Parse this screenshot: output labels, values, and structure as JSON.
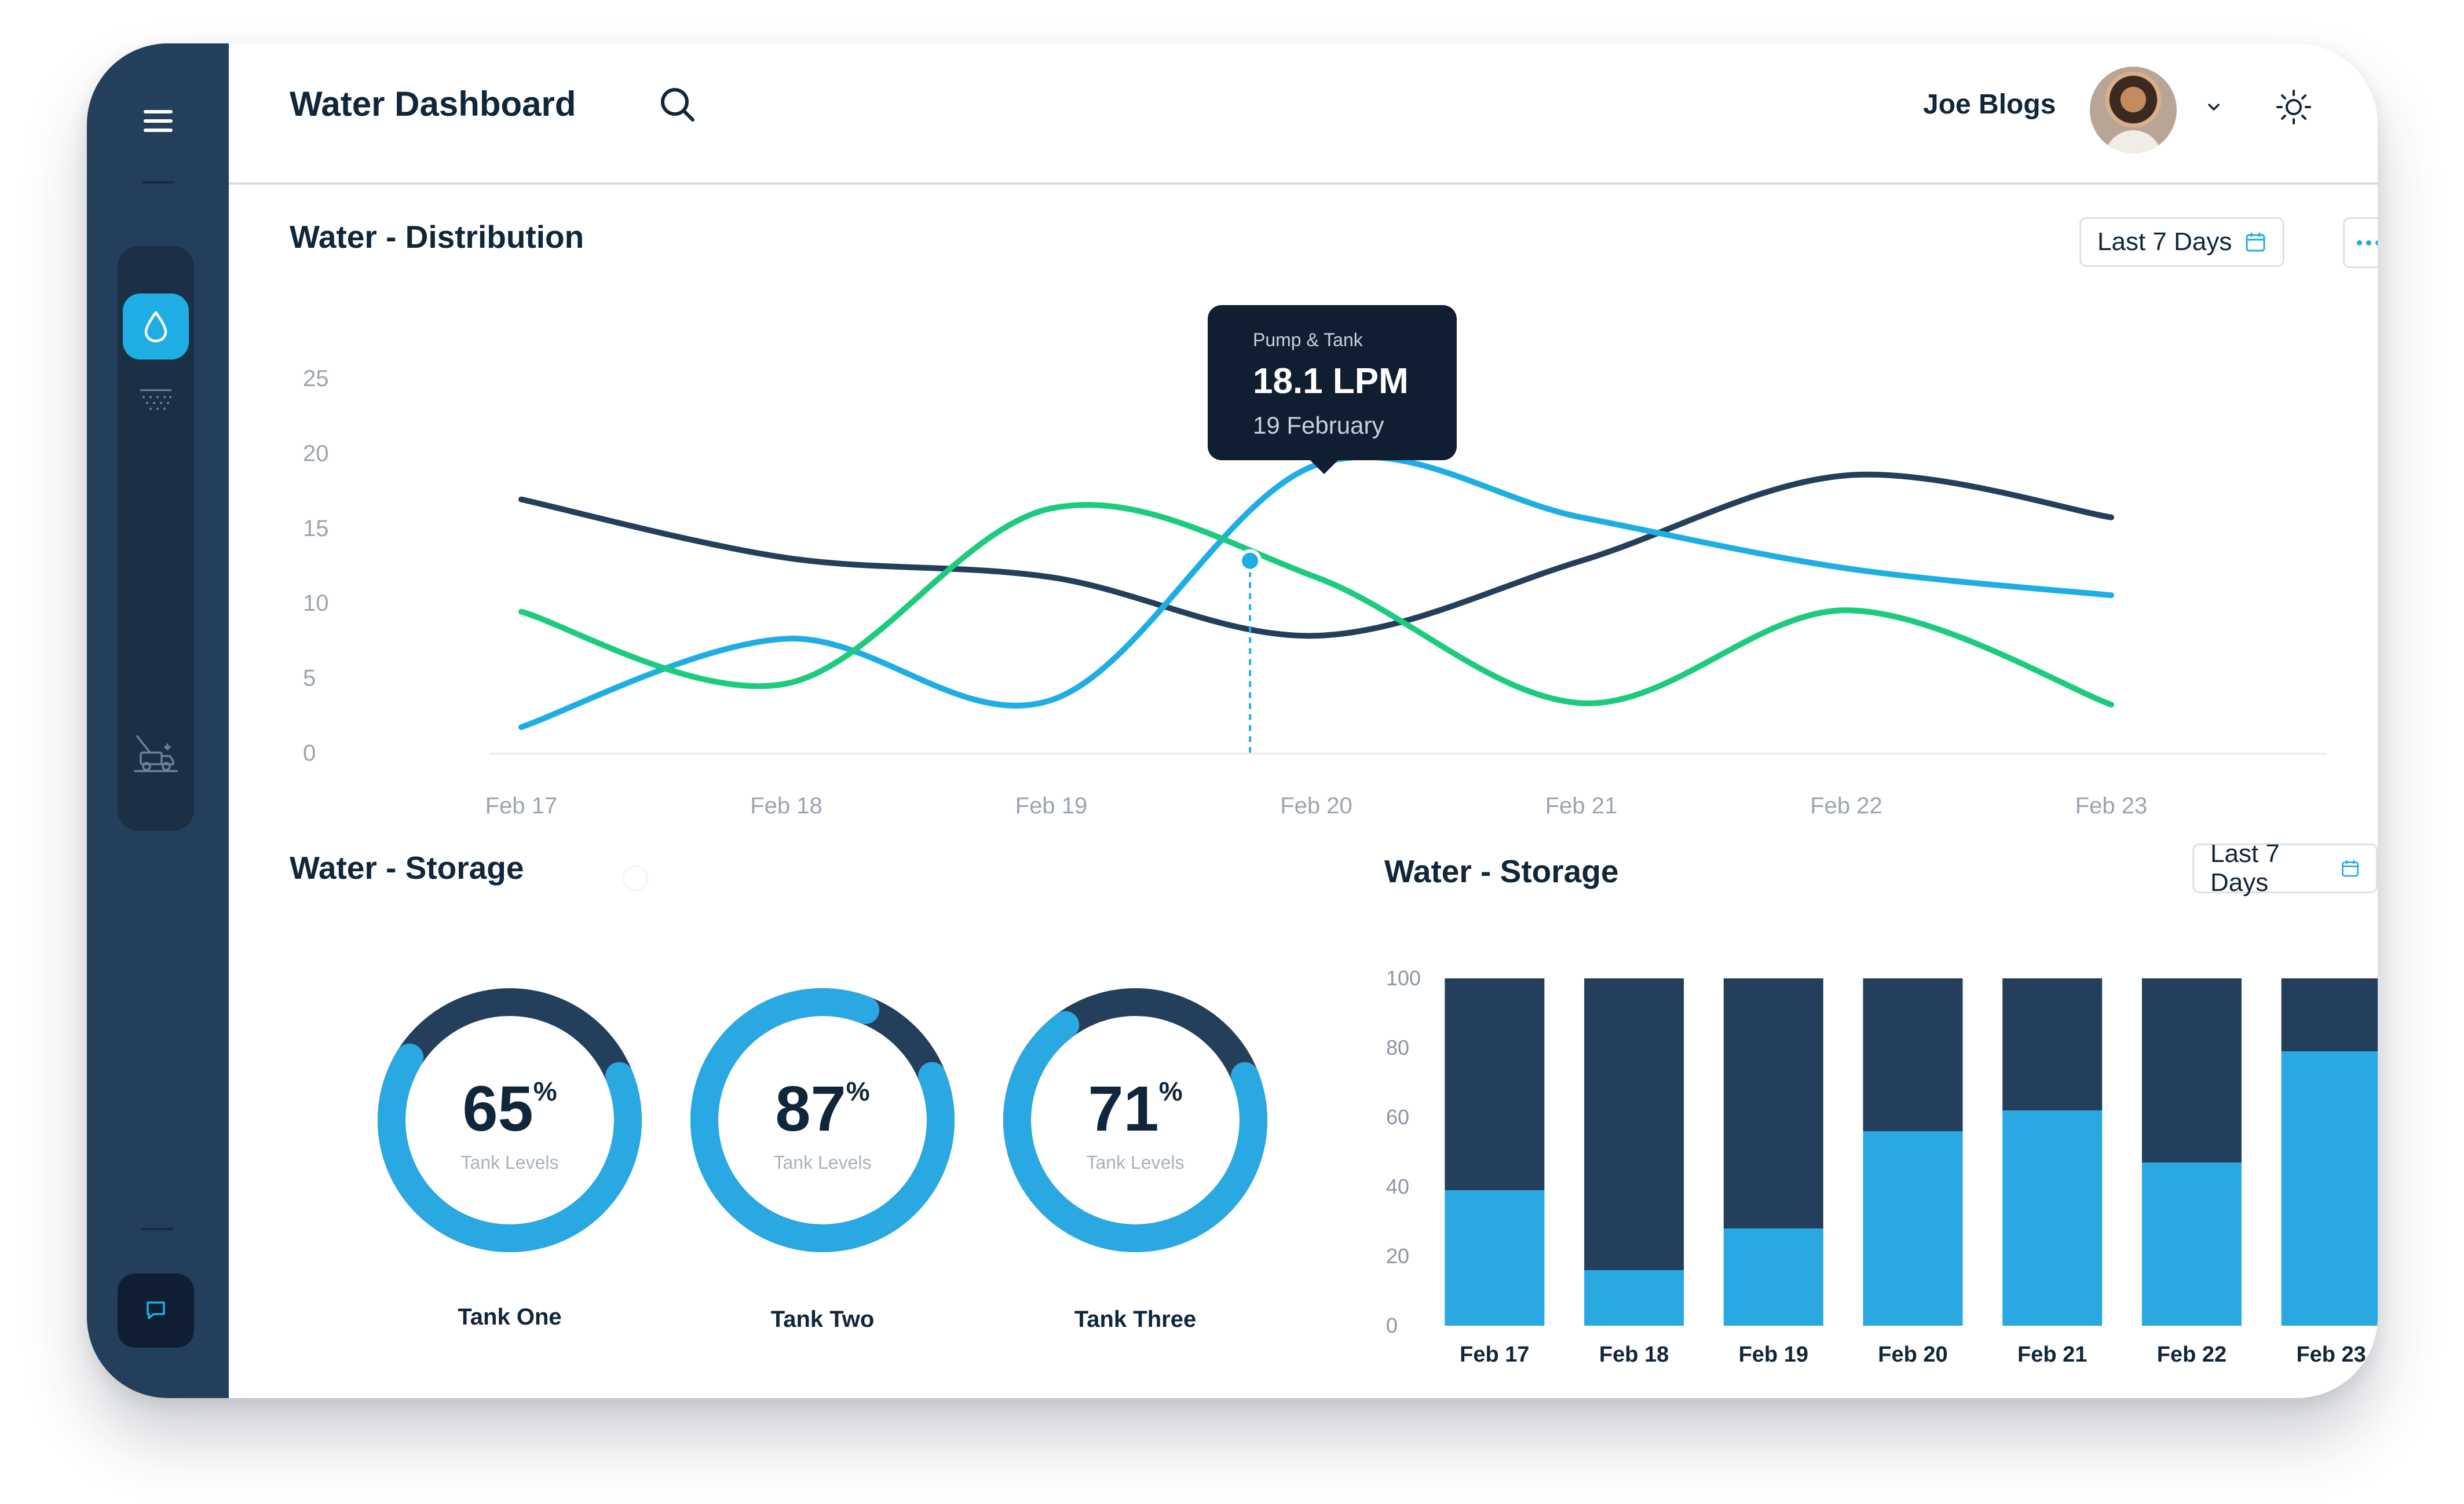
{
  "header": {
    "title": "Water Dashboard",
    "user_name": "Joe Blogs"
  },
  "distribution": {
    "title": "Water - Distribution",
    "range_label": "Last 7 Days",
    "tooltip": {
      "series": "Pump & Tank",
      "value": "18.1 LPM",
      "date": "19 February"
    }
  },
  "storage_gauges": {
    "title": "Water - Storage",
    "caption": "Tank Levels",
    "percent_sign": "%",
    "tanks": [
      {
        "name": "Tank One",
        "value": 65
      },
      {
        "name": "Tank Two",
        "value": 87
      },
      {
        "name": "Tank Three",
        "value": 71
      }
    ]
  },
  "storage_bars": {
    "title": "Water - Storage",
    "range_label": "Last 7 Days"
  },
  "chart_data": [
    {
      "type": "line",
      "title": "Water - Distribution",
      "x": [
        "Feb 17",
        "Feb 18",
        "Feb 19",
        "Feb 20",
        "Feb 21",
        "Feb 22",
        "Feb 23"
      ],
      "ylim": [
        0,
        25
      ],
      "yticks": [
        0,
        5,
        10,
        15,
        20,
        25
      ],
      "grid": false,
      "series": [
        {
          "color": "#233f5b",
          "values": [
            16.9,
            13.0,
            11.7,
            7.8,
            12.8,
            18.5,
            15.7
          ]
        },
        {
          "color": "#1faee3",
          "values": [
            1.7,
            7.6,
            3.5,
            19.2,
            15.7,
            12.3,
            10.5
          ]
        },
        {
          "color": "#1ccb7d",
          "values": [
            9.4,
            4.6,
            16.3,
            11.7,
            3.3,
            9.5,
            3.2
          ]
        }
      ]
    },
    {
      "type": "bar",
      "title": "Water - Storage",
      "categories": [
        "Feb 17",
        "Feb 18",
        "Feb 19",
        "Feb 20",
        "Feb 21",
        "Feb 22",
        "Feb 23"
      ],
      "ylim": [
        0,
        100
      ],
      "yticks": [
        0,
        20,
        40,
        60,
        80,
        100
      ],
      "stacked": true,
      "series": [
        {
          "color": "#29a8e2",
          "values": [
            39,
            16,
            28,
            56,
            62,
            47,
            79
          ]
        },
        {
          "color": "#233f5b",
          "values": [
            61,
            84,
            72,
            44,
            38,
            53,
            21
          ]
        }
      ]
    }
  ]
}
